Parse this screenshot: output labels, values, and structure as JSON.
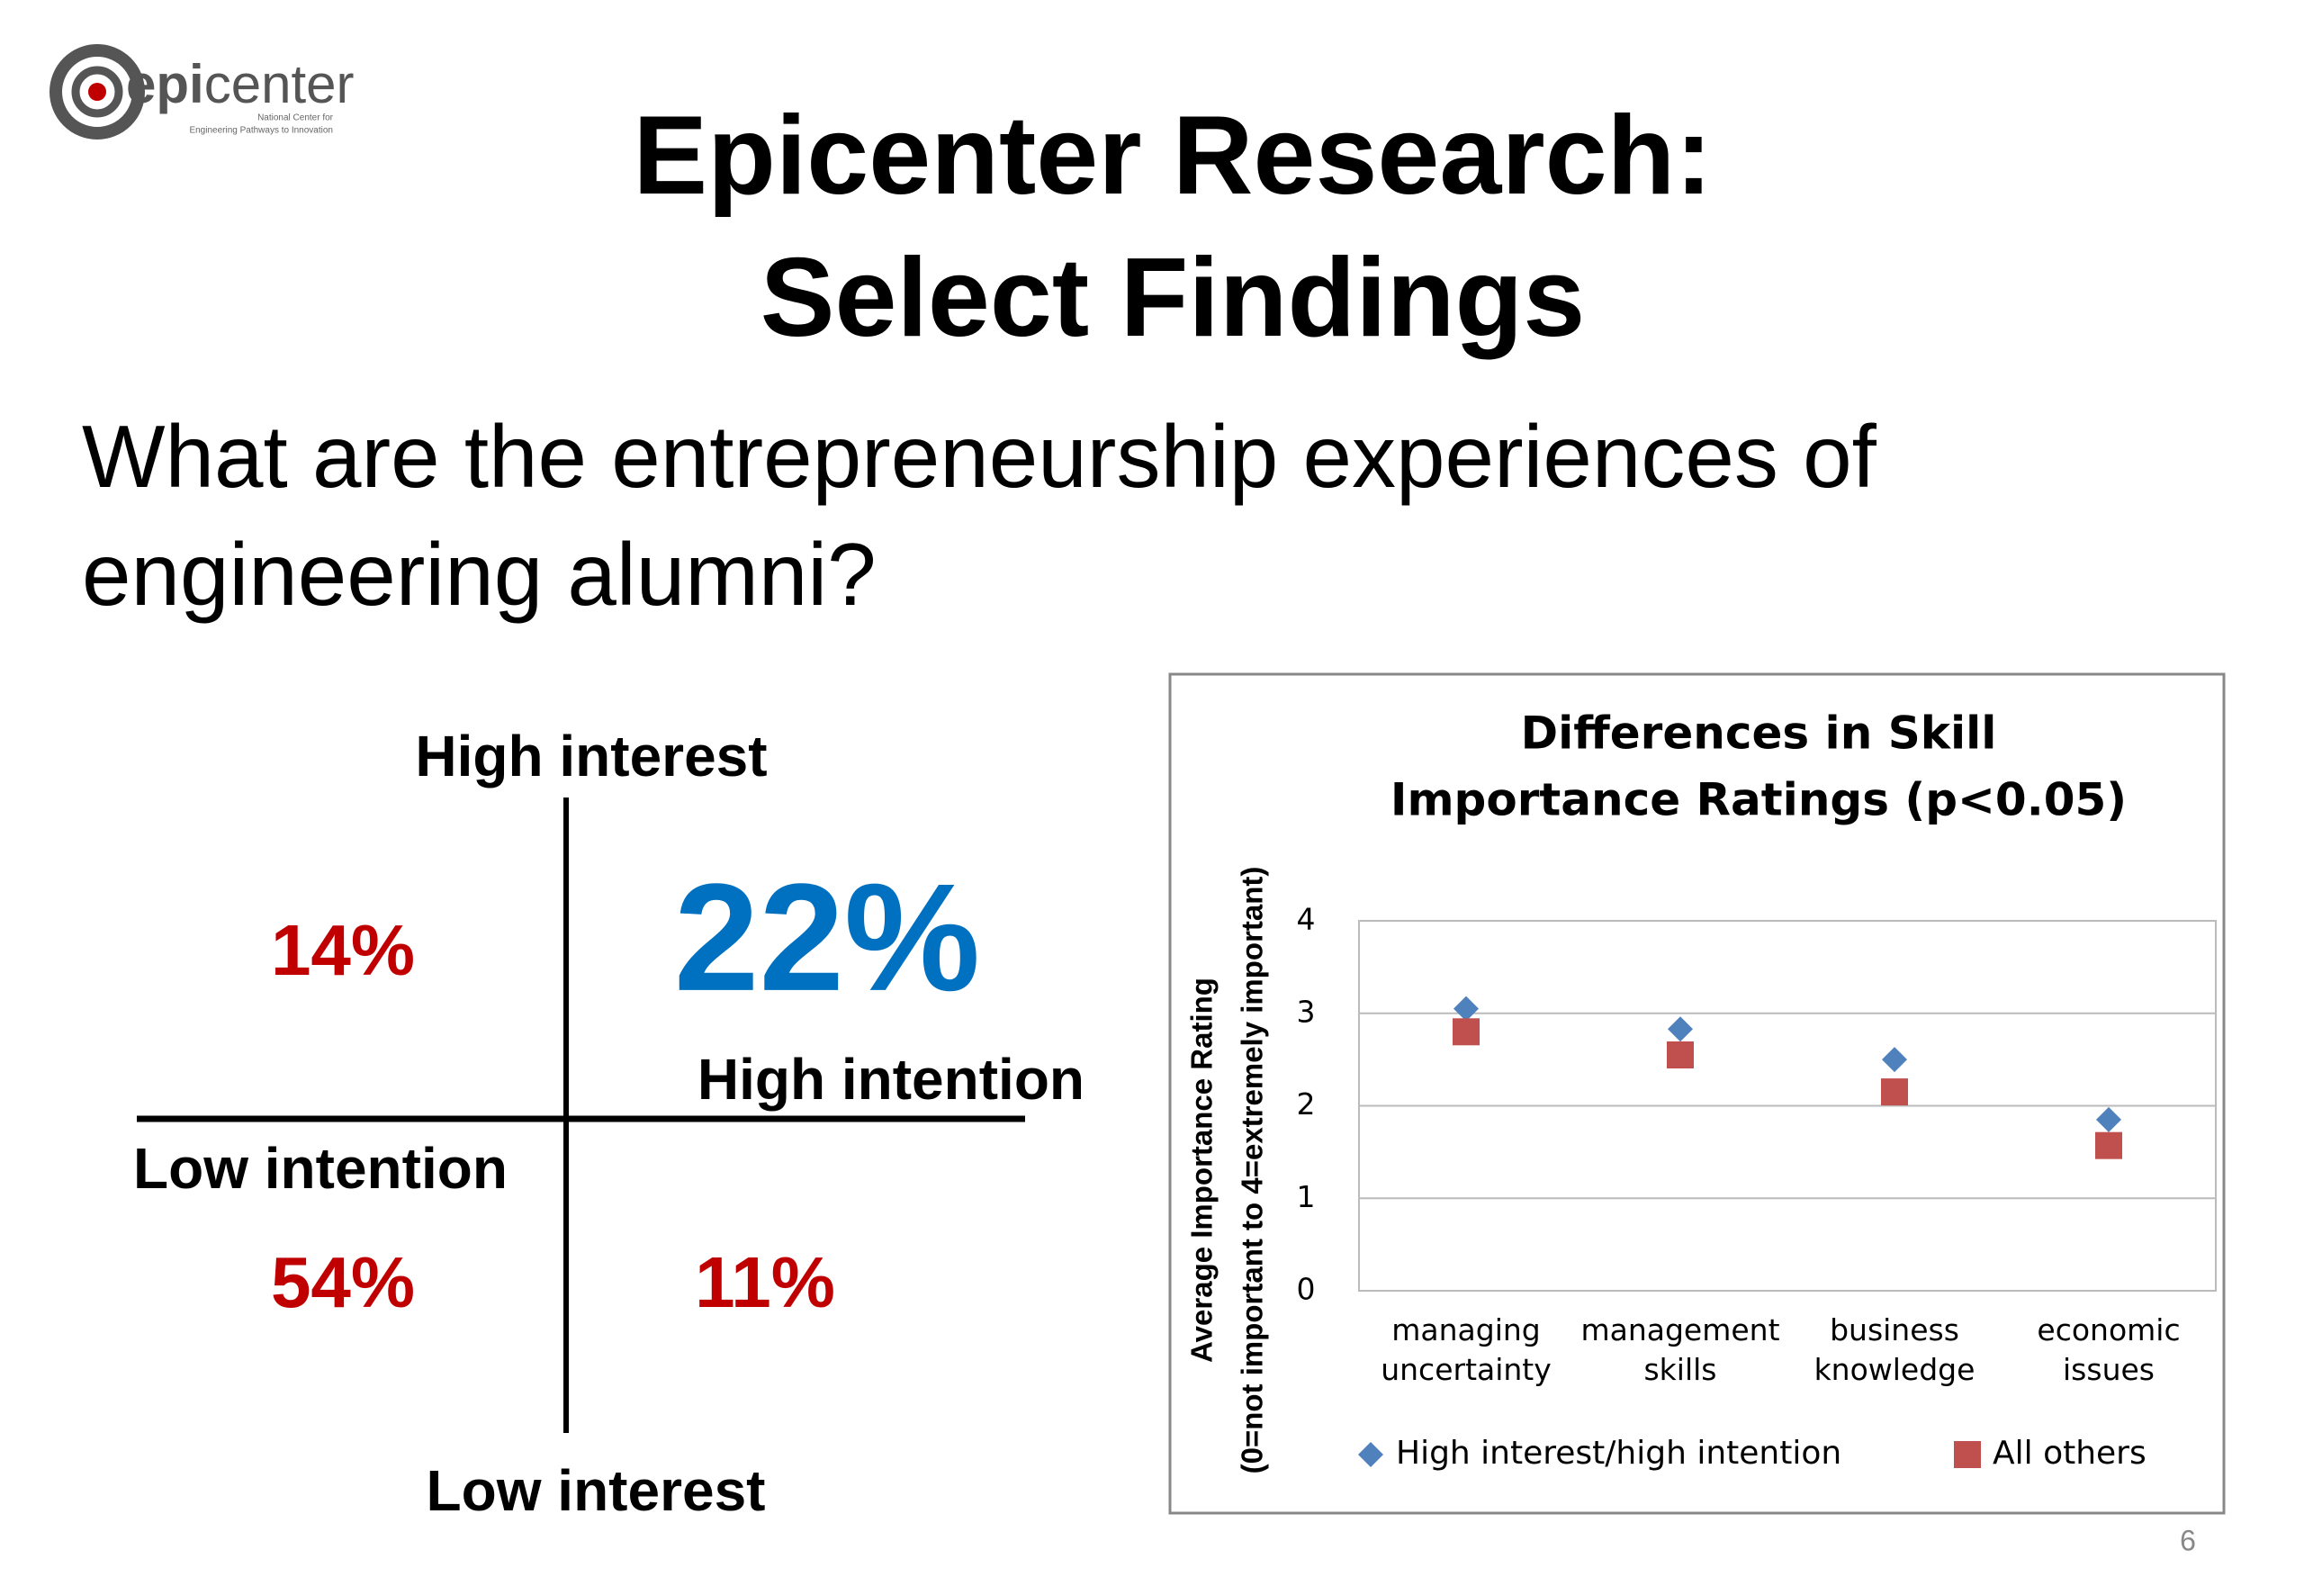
{
  "logo": {
    "prefix": "epi",
    "suffix": "center",
    "tagline": [
      "National Center for",
      "Engineering Pathways to Innovation"
    ]
  },
  "title": [
    "Epicenter Research:",
    "Select Findings"
  ],
  "question": [
    "What are the entrepreneurship experiences of",
    "engineering alumni?"
  ],
  "quadrant": {
    "top": "High interest",
    "bottom": "Low interest",
    "left": "Low intention",
    "right": "High intention",
    "top_left": "14%",
    "top_right": "22%",
    "bottom_left": "54%",
    "bottom_right": "11%"
  },
  "page_number": "6",
  "chart_data": {
    "type": "scatter",
    "title": [
      "Differences in Skill",
      "Importance Ratings (p<0.05)"
    ],
    "y_label": [
      "Average Importance  Rating",
      "(0=not important to 4=extremely important)"
    ],
    "categories": [
      "managing uncertainty",
      "management skills",
      "business knowledge",
      "economic issues"
    ],
    "series": [
      {
        "name": "High interest/high intention",
        "color": "#4f81bd",
        "marker": "diamond",
        "values": [
          3.05,
          2.83,
          2.5,
          1.85
        ]
      },
      {
        "name": "All others",
        "color": "#c0504d",
        "marker": "square",
        "values": [
          2.8,
          2.55,
          2.15,
          1.57
        ]
      }
    ],
    "ylim": [
      0,
      4
    ],
    "yticks": [
      0,
      1,
      2,
      3,
      4
    ],
    "grid": true,
    "legend": "bottom"
  }
}
